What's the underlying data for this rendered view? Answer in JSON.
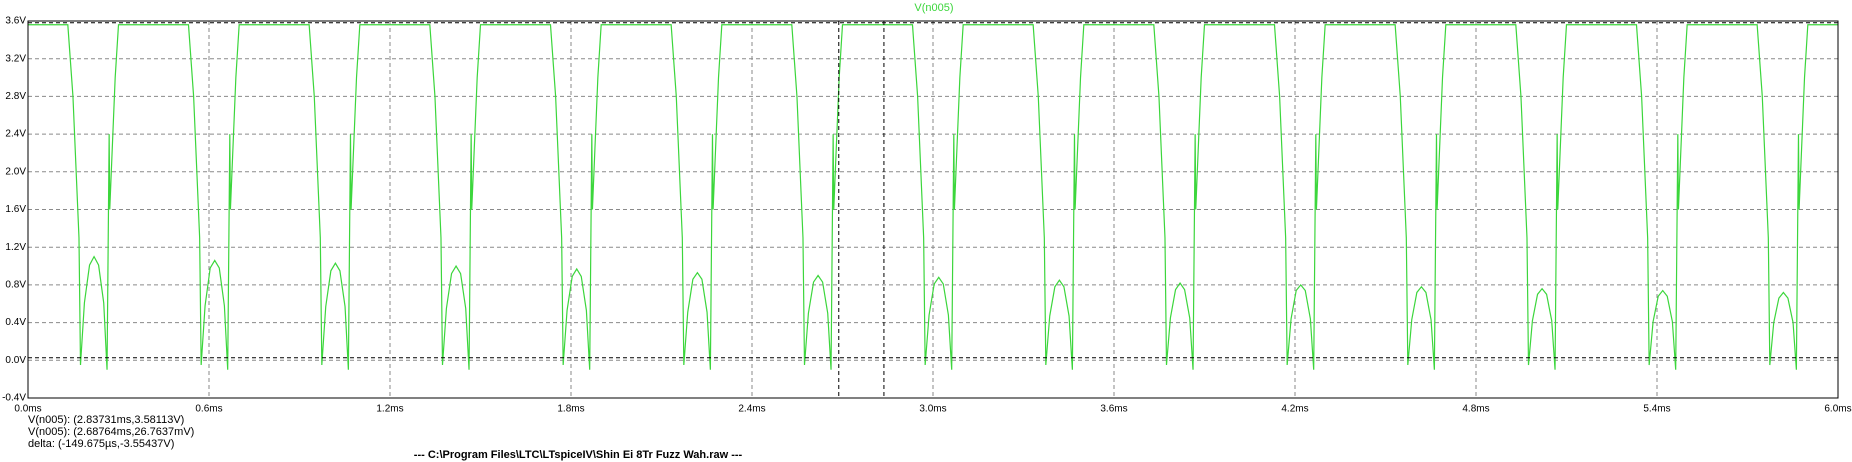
{
  "chart_data": {
    "type": "line",
    "series": [
      {
        "name": "V(n005)",
        "color": "#3cd63c",
        "values": [
          3.56,
          3.56,
          2.8,
          1.3,
          -0.05,
          0.61,
          1.01,
          1.1,
          1.01,
          0.61,
          -0.1,
          2.4,
          1.6,
          3.0,
          3.56,
          3.56,
          2.8,
          1.3,
          -0.05,
          0.58,
          0.98,
          1.06,
          0.98,
          0.58,
          -0.1,
          2.4,
          1.6,
          3.0,
          3.56,
          3.56,
          2.8,
          1.3,
          -0.05,
          0.57,
          0.95,
          1.03,
          0.95,
          0.57,
          -0.1,
          2.4,
          1.6,
          3.0,
          3.56,
          3.56,
          2.8,
          1.3,
          -0.05,
          0.55,
          0.92,
          1.0,
          0.92,
          0.55,
          -0.1,
          2.4,
          1.6,
          3.0,
          3.56,
          3.56,
          2.8,
          1.3,
          -0.05,
          0.53,
          0.89,
          0.97,
          0.89,
          0.53,
          -0.1,
          2.4,
          1.6,
          3.0,
          3.56,
          3.56,
          2.8,
          1.3,
          -0.05,
          0.51,
          0.86,
          0.93,
          0.86,
          0.51,
          -0.1,
          2.4,
          1.6,
          3.0,
          3.56,
          3.56,
          2.8,
          1.3,
          -0.05,
          0.5,
          0.83,
          0.9,
          0.83,
          0.5,
          -0.1,
          2.4,
          1.6,
          3.0,
          3.56,
          3.56,
          2.8,
          1.3,
          -0.05,
          0.48,
          0.81,
          0.88,
          0.81,
          0.48,
          -0.1,
          2.4,
          1.6,
          3.0,
          3.56,
          3.56,
          2.8,
          1.3,
          -0.05,
          0.47,
          0.78,
          0.85,
          0.78,
          0.47,
          -0.1,
          2.4,
          1.6,
          3.0,
          3.56,
          3.56,
          2.8,
          1.3,
          -0.05,
          0.45,
          0.75,
          0.82,
          0.75,
          0.45,
          -0.1,
          2.4,
          1.6,
          3.0,
          3.56,
          3.56,
          2.8,
          1.3,
          -0.05,
          0.44,
          0.74,
          0.8,
          0.74,
          0.44,
          -0.1,
          2.4,
          1.6,
          3.0,
          3.56,
          3.56,
          2.8,
          1.3,
          -0.05,
          0.43,
          0.72,
          0.78,
          0.72,
          0.43,
          -0.1,
          2.4,
          1.6,
          3.0,
          3.56,
          3.56,
          2.8,
          1.3,
          -0.05,
          0.42,
          0.7,
          0.76,
          0.7,
          0.42,
          -0.1,
          2.4,
          1.6,
          3.0,
          3.56,
          3.56,
          2.8,
          1.3,
          -0.05,
          0.41,
          0.68,
          0.74,
          0.68,
          0.41,
          -0.1,
          2.4,
          1.6,
          3.0,
          3.56,
          3.56,
          2.8,
          1.3,
          -0.05,
          0.4,
          0.66,
          0.72,
          0.66,
          0.4,
          -0.1,
          2.4,
          1.6,
          3.0,
          3.56,
          3.56
        ]
      }
    ],
    "x": [
      0,
      0.132,
      0.149,
      0.169,
      0.174,
      0.187,
      0.204,
      0.219,
      0.234,
      0.251,
      0.262,
      0.269,
      0.271,
      0.289,
      0.3,
      0.532,
      0.549,
      0.569,
      0.574,
      0.587,
      0.604,
      0.619,
      0.634,
      0.651,
      0.662,
      0.669,
      0.671,
      0.689,
      0.7,
      0.932,
      0.949,
      0.969,
      0.974,
      0.987,
      1.004,
      1.019,
      1.034,
      1.051,
      1.062,
      1.069,
      1.071,
      1.089,
      1.1,
      1.332,
      1.349,
      1.369,
      1.374,
      1.387,
      1.404,
      1.419,
      1.434,
      1.451,
      1.462,
      1.469,
      1.471,
      1.489,
      1.5,
      1.732,
      1.749,
      1.769,
      1.774,
      1.787,
      1.804,
      1.819,
      1.834,
      1.851,
      1.862,
      1.869,
      1.871,
      1.889,
      1.9,
      2.132,
      2.149,
      2.169,
      2.174,
      2.187,
      2.204,
      2.219,
      2.234,
      2.251,
      2.262,
      2.269,
      2.271,
      2.289,
      2.3,
      2.532,
      2.549,
      2.569,
      2.574,
      2.587,
      2.604,
      2.619,
      2.634,
      2.651,
      2.662,
      2.669,
      2.671,
      2.689,
      2.7,
      2.932,
      2.949,
      2.969,
      2.974,
      2.987,
      3.004,
      3.019,
      3.034,
      3.051,
      3.062,
      3.069,
      3.071,
      3.089,
      3.1,
      3.332,
      3.349,
      3.369,
      3.374,
      3.387,
      3.404,
      3.419,
      3.434,
      3.451,
      3.462,
      3.469,
      3.471,
      3.489,
      3.5,
      3.732,
      3.749,
      3.769,
      3.774,
      3.787,
      3.804,
      3.819,
      3.834,
      3.851,
      3.862,
      3.869,
      3.871,
      3.889,
      3.9,
      4.132,
      4.149,
      4.169,
      4.174,
      4.187,
      4.204,
      4.219,
      4.234,
      4.251,
      4.262,
      4.269,
      4.271,
      4.289,
      4.3,
      4.532,
      4.549,
      4.569,
      4.574,
      4.587,
      4.604,
      4.619,
      4.634,
      4.651,
      4.662,
      4.669,
      4.671,
      4.689,
      4.7,
      4.932,
      4.949,
      4.969,
      4.974,
      4.987,
      5.004,
      5.019,
      5.034,
      5.051,
      5.062,
      5.069,
      5.071,
      5.089,
      5.1,
      5.332,
      5.349,
      5.369,
      5.374,
      5.387,
      5.404,
      5.419,
      5.434,
      5.451,
      5.462,
      5.469,
      5.471,
      5.489,
      5.5,
      5.732,
      5.749,
      5.769,
      5.774,
      5.787,
      5.804,
      5.819,
      5.834,
      5.851,
      5.862,
      5.869,
      5.871,
      5.889,
      5.9,
      6.0
    ],
    "xlim": [
      0,
      6.0
    ],
    "xticks": [
      {
        "value": 0,
        "label": "0.0ms"
      },
      {
        "value": 0.6,
        "label": "0.6ms"
      },
      {
        "value": 1.2,
        "label": "1.2ms"
      },
      {
        "value": 1.8,
        "label": "1.8ms"
      },
      {
        "value": 2.4,
        "label": "2.4ms"
      },
      {
        "value": 3.0,
        "label": "3.0ms"
      },
      {
        "value": 3.6,
        "label": "3.6ms"
      },
      {
        "value": 4.2,
        "label": "4.2ms"
      },
      {
        "value": 4.8,
        "label": "4.8ms"
      },
      {
        "value": 5.4,
        "label": "5.4ms"
      },
      {
        "value": 6.0,
        "label": "6.0ms"
      }
    ],
    "ylim": [
      -0.4,
      3.6
    ],
    "yticks": [
      {
        "value": -0.4,
        "label": "-0.4V"
      },
      {
        "value": 0,
        "label": "0.0V"
      },
      {
        "value": 0.4,
        "label": "0.4V"
      },
      {
        "value": 0.8,
        "label": "0.8V"
      },
      {
        "value": 1.2,
        "label": "1.2V"
      },
      {
        "value": 1.6,
        "label": "1.6V"
      },
      {
        "value": 2.0,
        "label": "2.0V"
      },
      {
        "value": 2.4,
        "label": "2.4V"
      },
      {
        "value": 2.8,
        "label": "2.8V"
      },
      {
        "value": 3.2,
        "label": "3.2V"
      },
      {
        "value": 3.6,
        "label": "3.6V"
      }
    ],
    "grid": true,
    "cursors": [
      {
        "x": 2.83731,
        "y": 3.58113
      },
      {
        "x": 2.68764,
        "y": 0.0267637
      }
    ],
    "annotations": [
      "V(n005): (2.83731ms,3.58113V)",
      "V(n005): (2.68764ms,26.7637mV)",
      "delta: (-149.675µs,-3.55437V)"
    ],
    "footer": "---  C:\\Program Files\\LTC\\LTspiceIV\\Shin Ei 8Tr Fuzz Wah.raw  ---"
  }
}
